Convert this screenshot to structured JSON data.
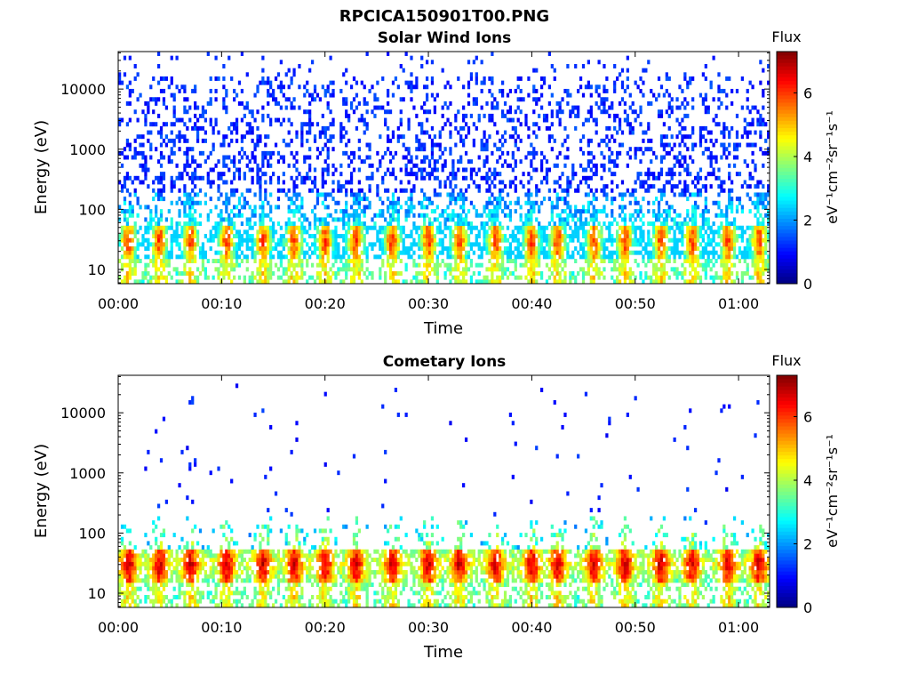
{
  "figure_title": "RPCICA150901T00.PNG",
  "chart_data": [
    {
      "type": "heatmap",
      "title": "Solar Wind Ions",
      "xlabel": "Time",
      "ylabel": "Energy (eV)",
      "xticks": [
        "00:00",
        "00:10",
        "00:20",
        "00:30",
        "00:40",
        "00:50",
        "01:00"
      ],
      "xlim_minutes": [
        0,
        63
      ],
      "yscale": "log",
      "yticks": [
        "10",
        "100",
        "1000",
        "10000"
      ],
      "ylim": [
        5.8,
        42000
      ],
      "colorbar": {
        "title": "Flux",
        "label": "eV⁻¹cm⁻²sr⁻¹s⁻¹",
        "ticks": [
          "0",
          "2",
          "4",
          "6"
        ],
        "range": [
          0,
          7.3
        ],
        "colormap": "jet"
      },
      "features": {
        "background_flux_range": [
          0.8,
          1.6
        ],
        "background_energy_range": [
          150,
          15000
        ],
        "mid_band_energy_range": [
          60,
          300
        ],
        "peak_energy": 30,
        "peak_flux_range": [
          4.5,
          6.5
        ],
        "burst_times_minutes": [
          1,
          4,
          7,
          10.5,
          14,
          17,
          20,
          23,
          26.5,
          30,
          33,
          36.5,
          40,
          42.5,
          46,
          49,
          52.5,
          55.5,
          59,
          62
        ]
      }
    },
    {
      "type": "heatmap",
      "title": "Cometary Ions",
      "xlabel": "Time",
      "ylabel": "Energy (eV)",
      "xticks": [
        "00:00",
        "00:10",
        "00:20",
        "00:30",
        "00:40",
        "00:50",
        "01:00"
      ],
      "xlim_minutes": [
        0,
        63
      ],
      "yscale": "log",
      "yticks": [
        "10",
        "100",
        "1000",
        "10000"
      ],
      "ylim": [
        5.8,
        42000
      ],
      "colorbar": {
        "title": "Flux",
        "label": "eV⁻¹cm⁻²sr⁻¹s⁻¹",
        "ticks": [
          "0",
          "2",
          "4",
          "6"
        ],
        "range": [
          0,
          7.3
        ],
        "colormap": "jet"
      },
      "features": {
        "background_flux_range": [
          0.8,
          1.4
        ],
        "background_energy_range": [
          200,
          30000
        ],
        "peak_energy": 30,
        "peak_flux_range": [
          5.5,
          7.2
        ],
        "burst_times_minutes": [
          1,
          4,
          7,
          10.5,
          14,
          17,
          20,
          23,
          26.5,
          30,
          33,
          36.5,
          40,
          42.5,
          46,
          49,
          52.5,
          55.5,
          59,
          62
        ]
      }
    }
  ],
  "colors": {
    "axis": "#000000",
    "background": "#ffffff",
    "colormap_stops": [
      "#00008f",
      "#0000ff",
      "#00ffff",
      "#ffff00",
      "#ff0000",
      "#800000"
    ]
  }
}
